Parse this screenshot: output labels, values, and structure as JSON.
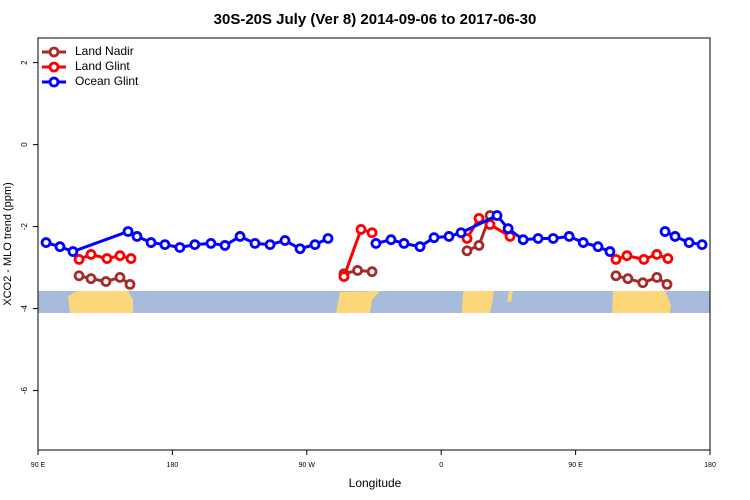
{
  "chart_data": {
    "type": "line",
    "title": "30S-20S July (Ver 8)   2014-09-06 to 2017-06-30",
    "xlabel": "Longitude",
    "ylabel": "XCO2 - MLO trend (ppm)",
    "xlim": [
      90,
      540
    ],
    "ylim": [
      -7.45,
      2.6
    ],
    "xticks": [
      {
        "value": 90,
        "label": "90 E"
      },
      180,
      {
        "value": 270,
        "label": "90 W"
      },
      {
        "value": 360,
        "label": "0"
      },
      {
        "value": 450,
        "label": "90 E"
      },
      {
        "value": 540,
        "label": "180"
      }
    ],
    "yticks": [
      -6,
      -4,
      -2,
      0,
      2
    ],
    "legend": "top-left",
    "series": [
      {
        "name": "Land Nadir",
        "color": "#a52a2a",
        "x": [
          117.5,
          125.5,
          135.5,
          144.9,
          151.6,
          null,
          294.9,
          304,
          313.7,
          null,
          377.3,
          385.3,
          392.7,
          null,
          477,
          485,
          495,
          504.4,
          511.2
        ],
        "values": [
          -3.2,
          -3.27,
          -3.34,
          -3.24,
          -3.41,
          null,
          -3.15,
          -3.07,
          -3.1,
          null,
          -2.59,
          -2.46,
          -1.73,
          null,
          -3.2,
          -3.27,
          -3.37,
          -3.24,
          -3.41
        ]
      },
      {
        "name": "Land Glint",
        "color": "#ff0000",
        "x": [
          117.5,
          125.5,
          136.2,
          144.9,
          152.3,
          null,
          294.9,
          306.3,
          313.7,
          null,
          377.3,
          385.3,
          392.7,
          406.1,
          null,
          477,
          484.4,
          495.7,
          504.4,
          511.8
        ],
        "values": [
          -2.8,
          -2.68,
          -2.78,
          -2.71,
          -2.78,
          null,
          -3.22,
          -2.07,
          -2.15,
          null,
          -2.29,
          -1.8,
          -1.95,
          -2.24,
          null,
          -2.8,
          -2.71,
          -2.8,
          -2.68,
          -2.78
        ]
      },
      {
        "name": "Ocean Glint",
        "color": "#0000ff",
        "x": [
          95.4,
          104.7,
          113.4,
          150.3,
          156.3,
          165.7,
          175,
          185,
          195,
          205.8,
          215.2,
          225.3,
          235.3,
          245.4,
          255.4,
          265.5,
          275.5,
          284.2,
          null,
          316.3,
          326.4,
          335.1,
          345.8,
          355.2,
          365.2,
          373.3,
          397.4,
          404.8,
          414.9,
          424.9,
          435,
          445.7,
          455.1,
          465,
          473,
          null,
          509.9,
          516.6,
          526,
          534.7
        ],
        "values": [
          -2.39,
          -2.49,
          -2.61,
          -2.12,
          -2.24,
          -2.39,
          -2.44,
          -2.51,
          -2.44,
          -2.41,
          -2.46,
          -2.24,
          -2.41,
          -2.44,
          -2.34,
          -2.54,
          -2.44,
          -2.29,
          null,
          -2.41,
          -2.32,
          -2.41,
          -2.49,
          -2.27,
          -2.24,
          -2.15,
          -1.73,
          -2.05,
          -2.32,
          -2.29,
          -2.29,
          -2.24,
          -2.39,
          -2.49,
          -2.61,
          null,
          -2.12,
          -2.24,
          -2.39,
          -2.44
        ]
      }
    ]
  }
}
